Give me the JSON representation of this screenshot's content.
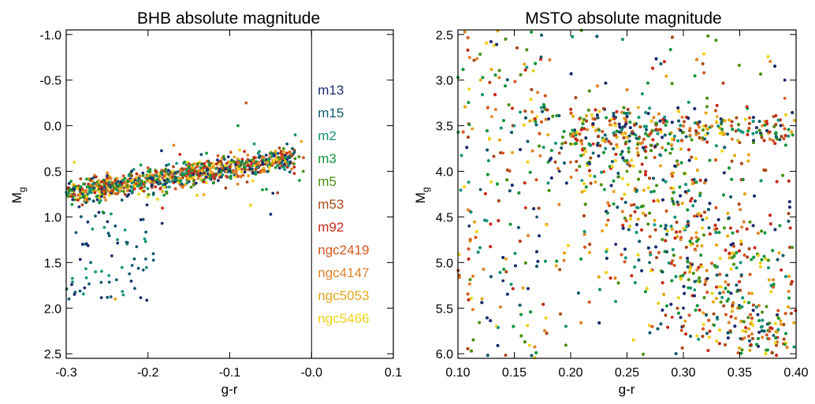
{
  "palette": {
    "m13": "#1b2b6e",
    "m15": "#105a6a",
    "m2": "#16937a",
    "m3": "#12953a",
    "m5": "#4a8f10",
    "m53": "#a9471a",
    "m92": "#c62a1a",
    "ngc2419": "#d4551e",
    "ngc4147": "#e0822a",
    "ngc5053": "#e6a618",
    "ngc5466": "#f2d21a"
  },
  "chart_data": [
    {
      "type": "scatter",
      "title": "BHB absolute magnitude",
      "xlabel": "g-r",
      "ylabel_main": "M",
      "ylabel_sub": "g",
      "xlim": [
        -0.3,
        0.1
      ],
      "ylim": [
        2.55,
        -1.05
      ],
      "y_inverted": true,
      "xticks": [
        -0.3,
        -0.2,
        -0.1,
        0.0,
        0.1
      ],
      "xtick_labels": [
        "-0.3",
        "-0.2",
        "-0.1",
        "-0.0",
        "0.1"
      ],
      "yticks": [
        -1.0,
        -0.5,
        0.0,
        0.5,
        1.0,
        1.5,
        2.0,
        2.5
      ],
      "ytick_labels": [
        "-1.0",
        "-0.5",
        "0.0",
        "0.5",
        "1.0",
        "1.5",
        "2.0",
        "2.5"
      ],
      "vline_x": 0.0,
      "legend": [
        "m13",
        "m15",
        "m2",
        "m3",
        "m5",
        "m53",
        "m92",
        "ngc2419",
        "ngc4147",
        "ngc5053",
        "ngc5466"
      ],
      "legend_position": "right",
      "distribution": {
        "main_sequence": {
          "x_range": [
            -0.3,
            -0.02
          ],
          "y_at_xmin": 0.75,
          "y_at_xmax": 0.35
        },
        "low_tail": {
          "x_range": [
            -0.3,
            -0.18
          ],
          "y_range": [
            0.8,
            1.95
          ]
        }
      },
      "series": [
        {
          "name": "m13",
          "x": [
            -0.29,
            -0.27,
            -0.25,
            -0.22,
            -0.18,
            -0.14,
            -0.1,
            -0.06,
            -0.29,
            -0.28,
            -0.26,
            -0.05
          ],
          "y": [
            0.7,
            0.65,
            0.55,
            0.5,
            0.6,
            0.45,
            0.5,
            0.4,
            1.85,
            1.3,
            0.95,
            0.97
          ]
        },
        {
          "name": "m15",
          "x": [
            -0.28,
            -0.25,
            -0.21,
            -0.16,
            -0.12,
            -0.08,
            -0.04,
            -0.27,
            -0.24,
            -0.03
          ],
          "y": [
            0.75,
            0.6,
            0.55,
            0.5,
            0.45,
            0.4,
            0.35,
            1.5,
            1.1,
            0.2
          ]
        },
        {
          "name": "m2",
          "x": [
            -0.27,
            -0.23,
            -0.19,
            -0.14,
            -0.1,
            -0.07,
            -0.02
          ],
          "y": [
            0.7,
            0.6,
            0.55,
            0.45,
            0.4,
            0.2,
            0.1
          ]
        },
        {
          "name": "m3",
          "x": [
            -0.28,
            -0.24,
            -0.2,
            -0.15,
            -0.11,
            -0.09,
            -0.05
          ],
          "y": [
            0.7,
            0.6,
            0.5,
            0.45,
            0.5,
            0.0,
            0.3
          ]
        },
        {
          "name": "m5",
          "x": [
            -0.26,
            -0.22,
            -0.17,
            -0.13,
            -0.08,
            -0.04
          ],
          "y": [
            0.65,
            0.55,
            0.5,
            0.45,
            0.4,
            0.35
          ]
        },
        {
          "name": "m53",
          "x": [
            -0.27,
            -0.22,
            -0.18,
            -0.13,
            -0.09,
            -0.06
          ],
          "y": [
            0.6,
            0.55,
            0.5,
            0.45,
            0.4,
            0.35
          ]
        },
        {
          "name": "m92",
          "x": [
            -0.29,
            -0.24,
            -0.19,
            -0.15,
            -0.1,
            -0.07,
            -0.03
          ],
          "y": [
            0.75,
            0.6,
            0.5,
            0.5,
            0.45,
            0.35,
            0.3
          ]
        },
        {
          "name": "ngc2419",
          "x": [
            -0.28,
            -0.23,
            -0.18,
            -0.14,
            -0.09,
            -0.08,
            -0.01
          ],
          "y": [
            0.7,
            0.55,
            0.55,
            0.45,
            0.4,
            -0.25,
            0.35
          ]
        },
        {
          "name": "ngc4147",
          "x": [
            -0.27,
            -0.21,
            -0.16,
            -0.11,
            -0.06
          ],
          "y": [
            0.65,
            0.55,
            0.5,
            0.45,
            0.35
          ]
        },
        {
          "name": "ngc5053",
          "x": [
            -0.26,
            -0.24,
            -0.2,
            -0.12
          ],
          "y": [
            0.6,
            1.9,
            0.55,
            0.45
          ]
        },
        {
          "name": "ngc5466",
          "x": [
            -0.29,
            -0.25,
            -0.17,
            -0.1
          ],
          "y": [
            0.4,
            0.6,
            0.5,
            0.4
          ]
        }
      ]
    },
    {
      "type": "scatter",
      "title": "MSTO absolute magnitude",
      "xlabel": "g-r",
      "ylabel_main": "M",
      "ylabel_sub": "g",
      "xlim": [
        0.1,
        0.4
      ],
      "ylim": [
        6.05,
        2.45
      ],
      "y_inverted": true,
      "xticks": [
        0.1,
        0.15,
        0.2,
        0.25,
        0.3,
        0.35,
        0.4
      ],
      "xtick_labels": [
        "0.10",
        "0.15",
        "0.20",
        "0.25",
        "0.30",
        "0.35",
        "0.40"
      ],
      "yticks": [
        2.5,
        3.0,
        3.5,
        4.0,
        4.5,
        5.0,
        5.5,
        6.0
      ],
      "ytick_labels": [
        "2.5",
        "3.0",
        "3.5",
        "4.0",
        "4.5",
        "5.0",
        "5.5",
        "6.0"
      ],
      "distribution": {
        "turnoff_x": 0.2,
        "subgiant_branch": {
          "y": 3.6,
          "x_range": [
            0.2,
            0.4
          ]
        },
        "dense_region": {
          "x_range": [
            0.17,
            0.4
          ],
          "y_range": [
            3.3,
            6.05
          ]
        },
        "sparse_region": {
          "x_range": [
            0.1,
            0.17
          ],
          "y_range": [
            2.45,
            6.05
          ]
        }
      },
      "series": [
        {
          "name": "m13",
          "x": [
            0.11,
            0.14,
            0.19,
            0.24,
            0.3,
            0.36,
            0.39
          ],
          "y": [
            4.6,
            5.2,
            4.0,
            4.8,
            5.5,
            5.9,
            3.0
          ]
        },
        {
          "name": "m15",
          "x": [
            0.12,
            0.17,
            0.22,
            0.27,
            0.33,
            0.38
          ],
          "y": [
            4.2,
            4.5,
            3.8,
            5.0,
            5.6,
            5.8
          ]
        },
        {
          "name": "m2",
          "x": [
            0.15,
            0.21,
            0.26,
            0.31,
            0.37
          ],
          "y": [
            3.5,
            4.1,
            4.4,
            5.3,
            5.7
          ]
        },
        {
          "name": "m3",
          "x": [
            0.18,
            0.23,
            0.28,
            0.34,
            0.39
          ],
          "y": [
            3.9,
            4.2,
            4.6,
            5.4,
            5.9
          ]
        },
        {
          "name": "m5",
          "x": [
            0.2,
            0.25,
            0.29,
            0.35
          ],
          "y": [
            3.7,
            4.0,
            4.3,
            5.5
          ]
        },
        {
          "name": "m53",
          "x": [
            0.19,
            0.24,
            0.32,
            0.38
          ],
          "y": [
            3.8,
            3.6,
            3.5,
            3.4
          ]
        },
        {
          "name": "m92",
          "x": [
            0.16,
            0.22,
            0.29,
            0.36
          ],
          "y": [
            4.4,
            3.7,
            5.6,
            5.9
          ]
        },
        {
          "name": "ngc2419",
          "x": [
            0.14,
            0.2,
            0.27,
            0.39
          ],
          "y": [
            3.8,
            3.9,
            3.6,
            3.2
          ]
        },
        {
          "name": "ngc4147",
          "x": [
            0.13,
            0.21,
            0.3,
            0.37
          ],
          "y": [
            3.4,
            3.7,
            3.5,
            3.5
          ]
        },
        {
          "name": "ngc5053",
          "x": [
            0.12,
            0.18,
            0.26,
            0.33
          ],
          "y": [
            3.0,
            3.6,
            3.3,
            3.4
          ]
        },
        {
          "name": "ngc5466",
          "x": [
            0.11,
            0.17,
            0.24,
            0.32
          ],
          "y": [
            3.1,
            3.4,
            3.5,
            3.6
          ]
        }
      ]
    }
  ]
}
